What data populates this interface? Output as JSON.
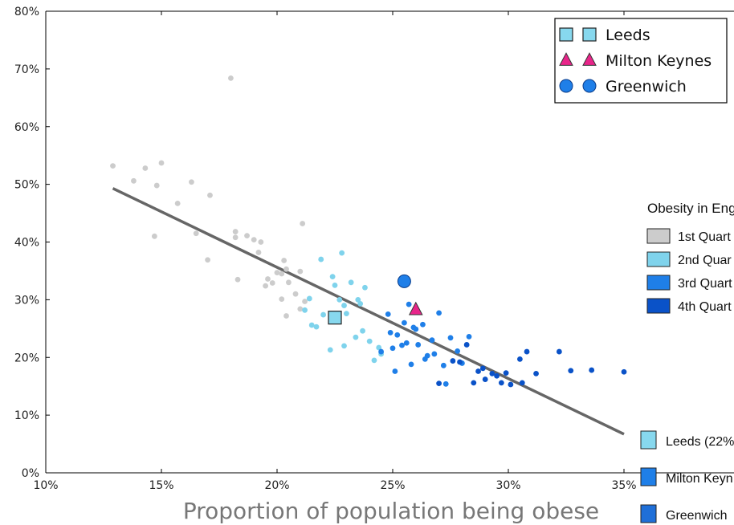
{
  "chart_data": {
    "type": "scatter",
    "xlabel": "Proportion of population being obese",
    "ylabel": "",
    "xlim": [
      10,
      35
    ],
    "ylim": [
      0,
      80
    ],
    "x_ticks": [
      "10%",
      "15%",
      "20%",
      "25%",
      "30%",
      "35%"
    ],
    "y_ticks": [
      "0%",
      "10%",
      "20%",
      "30%",
      "40%",
      "50%",
      "60%",
      "70%",
      "80%"
    ],
    "grid": false,
    "trend_line": {
      "x": [
        12.9,
        35.0
      ],
      "y": [
        49.3,
        6.7
      ],
      "color": "#666666"
    },
    "quartile_colors": [
      "#cccccc",
      "#7fd3ec",
      "#1f7fe8",
      "#0a52c8"
    ],
    "series": [
      {
        "quartile": 1,
        "x": [
          12.9,
          13.8,
          14.3,
          14.8,
          15.0,
          14.7,
          15.7,
          16.3,
          16.5,
          17.1,
          17.0,
          18.0,
          18.2,
          18.3,
          18.7,
          19.0,
          19.3,
          19.2,
          19.5,
          19.6,
          19.8,
          20.0,
          20.2,
          20.3,
          20.5,
          20.4,
          20.8,
          21.0,
          21.1,
          21.0,
          21.2,
          18.2,
          20.2,
          20.4
        ],
        "y": [
          53.2,
          50.6,
          52.8,
          49.8,
          53.7,
          41.0,
          46.7,
          50.4,
          41.5,
          48.1,
          36.9,
          68.4,
          41.8,
          33.5,
          41.1,
          40.4,
          40.0,
          38.2,
          32.4,
          33.6,
          32.9,
          34.7,
          34.5,
          36.8,
          33.0,
          27.2,
          31.0,
          28.4,
          43.2,
          34.9,
          29.7,
          40.8,
          30.1,
          35.3
        ]
      },
      {
        "quartile": 2,
        "x": [
          21.5,
          21.7,
          21.4,
          22.0,
          22.4,
          22.5,
          22.7,
          22.9,
          23.0,
          23.2,
          23.4,
          23.5,
          23.7,
          23.8,
          24.0,
          24.2,
          24.4,
          21.2,
          22.3,
          22.9,
          23.6,
          24.5,
          22.8,
          21.9
        ],
        "y": [
          25.6,
          25.3,
          30.2,
          27.4,
          34.0,
          32.5,
          30.0,
          29.0,
          27.6,
          33.0,
          23.5,
          30.0,
          24.6,
          32.1,
          22.8,
          19.5,
          21.7,
          28.2,
          21.3,
          22.0,
          29.3,
          20.6,
          38.1,
          37.0
        ]
      },
      {
        "quartile": 3,
        "x": [
          24.5,
          24.8,
          25.0,
          25.2,
          25.4,
          25.5,
          25.7,
          25.8,
          26.0,
          26.1,
          26.3,
          26.5,
          26.7,
          27.0,
          27.2,
          27.5,
          27.8,
          28.0,
          28.3,
          25.1,
          25.9,
          26.8,
          27.3,
          24.9,
          25.6,
          26.4
        ],
        "y": [
          21.0,
          27.5,
          21.6,
          23.9,
          22.1,
          26.0,
          29.2,
          18.8,
          24.9,
          22.2,
          25.7,
          20.3,
          23.0,
          27.7,
          18.6,
          23.4,
          21.1,
          19.0,
          23.6,
          17.6,
          25.2,
          20.6,
          15.4,
          24.3,
          22.5,
          19.7
        ]
      },
      {
        "quartile": 4,
        "x": [
          27.0,
          27.6,
          28.2,
          28.7,
          29.0,
          29.3,
          29.7,
          30.1,
          30.5,
          30.8,
          31.2,
          32.2,
          32.7,
          33.6,
          35.0,
          28.5,
          29.9,
          30.6,
          27.9,
          29.5,
          28.9
        ],
        "y": [
          15.5,
          19.4,
          22.2,
          17.6,
          16.2,
          17.2,
          15.6,
          15.3,
          19.7,
          21.0,
          17.2,
          21.0,
          17.7,
          17.8,
          17.5,
          15.6,
          17.3,
          15.6,
          19.2,
          16.8,
          18.1
        ]
      }
    ],
    "highlights": [
      {
        "name": "Leeds",
        "marker": "square",
        "x": 22.5,
        "y": 26.9,
        "color": "#87d8ee"
      },
      {
        "name": "Milton Keynes",
        "marker": "triangle",
        "x": 26.0,
        "y": 28.3,
        "color": "#e8258a"
      },
      {
        "name": "Greenwich",
        "marker": "circle",
        "x": 25.5,
        "y": 33.2,
        "color": "#1f7fe8"
      }
    ],
    "legend": {
      "placement": "top-right",
      "entries": [
        "Leeds",
        "Milton Keynes",
        "Greenwich"
      ]
    },
    "side_legend": {
      "title": "Obesity in Eng",
      "items": [
        {
          "label": "1st Quart",
          "color": "#cccccc"
        },
        {
          "label": "2nd Quar",
          "color": "#7fd3ec"
        },
        {
          "label": "3rd Quart",
          "color": "#1f7fe8"
        },
        {
          "label": "4th Quart",
          "color": "#0a52c8"
        }
      ]
    },
    "side_highlights": [
      {
        "label": "Leeds (22%",
        "color": "#87d8ee"
      },
      {
        "label": "Milton Keyn",
        "color": "#1f7fe8"
      },
      {
        "label": "Greenwich",
        "color": "#1f6fd8"
      }
    ]
  }
}
